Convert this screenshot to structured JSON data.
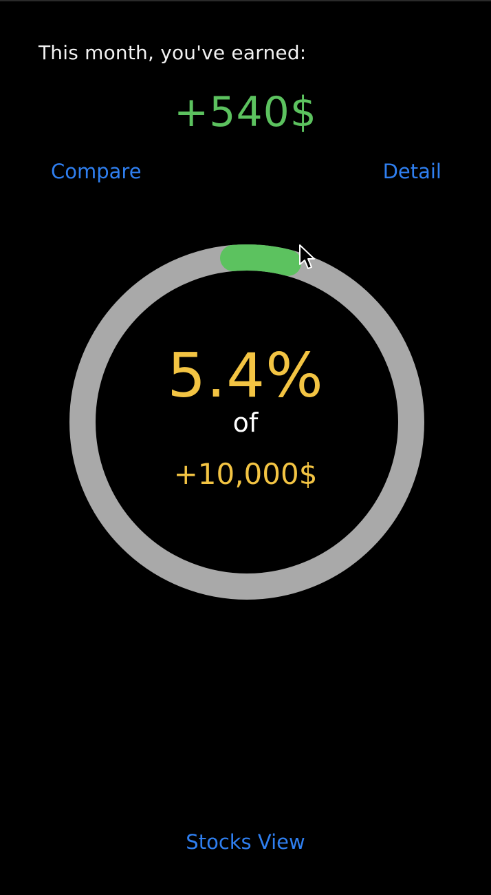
{
  "header": {
    "earned_label": "This month, you've earned:",
    "earned_amount": "+540$"
  },
  "actions": {
    "compare_label": "Compare",
    "detail_label": "Detail"
  },
  "progress": {
    "percent_text": "5.4%",
    "of_label": "of",
    "goal_text": "+10,000$",
    "fraction": 0.054,
    "track_color": "#a9a9a9",
    "fill_color": "#5cc25f"
  },
  "footer": {
    "stocks_view_label": "Stocks View"
  },
  "colors": {
    "background": "#000000",
    "positive": "#5cc25f",
    "accent_blue": "#2f7ff0",
    "highlight_yellow": "#f3c443"
  },
  "icons": {
    "cursor": "mouse-pointer-icon"
  }
}
